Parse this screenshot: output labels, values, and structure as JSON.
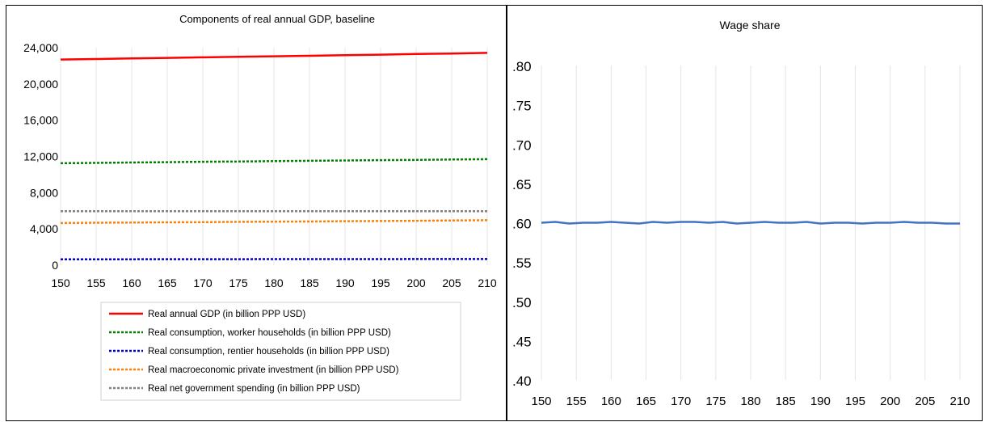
{
  "chart_data": [
    {
      "type": "line",
      "title": "Components of real annual GDP, baseline",
      "x": [
        150,
        155,
        160,
        165,
        170,
        175,
        180,
        185,
        190,
        195,
        200,
        205,
        210
      ],
      "xlim": [
        150,
        210
      ],
      "ylim": [
        0,
        24000
      ],
      "xticks": [
        "150",
        "155",
        "160",
        "165",
        "170",
        "175",
        "180",
        "185",
        "190",
        "195",
        "200",
        "205",
        "210"
      ],
      "yticks": [
        "0",
        "4,000",
        "8,000",
        "12,000",
        "16,000",
        "20,000",
        "24,000"
      ],
      "grid": "vertical",
      "legend": "bottom",
      "series": [
        {
          "name": "Real annual GDP (in billion PPP USD)",
          "color": "#ff0000",
          "style": "solid",
          "values": [
            22700,
            22750,
            22820,
            22880,
            22940,
            23000,
            23050,
            23110,
            23170,
            23230,
            23300,
            23360,
            23430
          ]
        },
        {
          "name": "Real consumption, worker households (in billion PPP USD)",
          "color": "#008000",
          "style": "dotted",
          "values": [
            11250,
            11290,
            11330,
            11370,
            11410,
            11440,
            11480,
            11520,
            11550,
            11590,
            11620,
            11660,
            11700
          ]
        },
        {
          "name": "Real consumption, rentier households (in billion PPP USD)",
          "color": "#0000cc",
          "style": "dotted",
          "values": [
            650,
            652,
            655,
            657,
            660,
            662,
            665,
            667,
            670,
            672,
            675,
            677,
            680
          ]
        },
        {
          "name": "Real macroeconomic private investment (in billion PPP USD)",
          "color": "#ff8000",
          "style": "dotted",
          "values": [
            4650,
            4680,
            4700,
            4730,
            4750,
            4780,
            4800,
            4820,
            4850,
            4870,
            4900,
            4930,
            4960
          ]
        },
        {
          "name": "Real net government spending (in billion PPP USD)",
          "color": "#808080",
          "style": "dotted",
          "values": [
            5950,
            5950,
            5950,
            5950,
            5950,
            5950,
            5950,
            5950,
            5950,
            5950,
            5950,
            5950,
            5950
          ]
        }
      ]
    },
    {
      "type": "line",
      "title": "Wage share",
      "x": [
        150,
        152,
        154,
        156,
        158,
        160,
        162,
        164,
        166,
        168,
        170,
        172,
        174,
        176,
        178,
        180,
        182,
        184,
        186,
        188,
        190,
        192,
        194,
        196,
        198,
        200,
        202,
        204,
        206,
        208,
        210
      ],
      "xlim": [
        150,
        210
      ],
      "ylim": [
        0.4,
        0.8
      ],
      "xticks": [
        "150",
        "155",
        "160",
        "165",
        "170",
        "175",
        "180",
        "185",
        "190",
        "195",
        "200",
        "205",
        "210"
      ],
      "yticks": [
        ".40",
        ".45",
        ".50",
        ".55",
        ".60",
        ".65",
        ".70",
        ".75",
        ".80"
      ],
      "grid": "vertical",
      "legend": "none",
      "series": [
        {
          "color": "#4472c4",
          "style": "solid",
          "values": [
            0.6,
            0.601,
            0.599,
            0.6,
            0.6,
            0.601,
            0.6,
            0.599,
            0.601,
            0.6,
            0.601,
            0.601,
            0.6,
            0.601,
            0.599,
            0.6,
            0.601,
            0.6,
            0.6,
            0.601,
            0.599,
            0.6,
            0.6,
            0.599,
            0.6,
            0.6,
            0.601,
            0.6,
            0.6,
            0.599,
            0.599
          ]
        }
      ]
    }
  ]
}
